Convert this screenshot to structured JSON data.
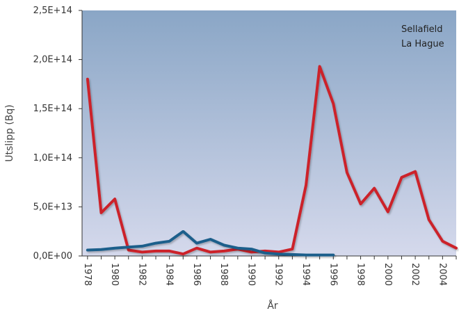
{
  "chart_data": {
    "type": "line",
    "title": "",
    "xlabel": "År",
    "ylabel": "Utslipp (Bq)",
    "ylim": [
      0,
      250000000000000.0
    ],
    "xlim": [
      1978,
      2005
    ],
    "y_ticks": [
      0,
      50000000000000.0,
      100000000000000.0,
      150000000000000.0,
      200000000000000.0,
      250000000000000.0
    ],
    "y_tick_labels": [
      "0,0E+00",
      "5,0E+13",
      "1,0E+14",
      "1,5E+14",
      "2,0E+14",
      "2,5E+14"
    ],
    "x_ticks": [
      1978,
      1980,
      1982,
      1984,
      1986,
      1988,
      1990,
      1992,
      1994,
      1996,
      1998,
      2000,
      2002,
      2004
    ],
    "x_tick_labels": [
      "1978",
      "1980",
      "1982",
      "1984",
      "1986",
      "1988",
      "1990",
      "1992",
      "1994",
      "1996",
      "1998",
      "2000",
      "2002",
      "2004"
    ],
    "legend_position": "top-right",
    "grid": false,
    "background_gradient": [
      "#8aa6c6",
      "#d5d9ec"
    ],
    "series": [
      {
        "name": "Sellafield",
        "color": "#cc2229",
        "x": [
          1978,
          1979,
          1980,
          1981,
          1982,
          1983,
          1984,
          1985,
          1986,
          1987,
          1988,
          1989,
          1990,
          1991,
          1992,
          1993,
          1994,
          1995,
          1996,
          1997,
          1998,
          1999,
          2000,
          2001,
          2002,
          2003,
          2004,
          2005
        ],
        "values": [
          180000000000000.0,
          44000000000000.0,
          58000000000000.0,
          6000000000000.0,
          4000000000000.0,
          5000000000000.0,
          5000000000000.0,
          2000000000000.0,
          8000000000000.0,
          4000000000000.0,
          5000000000000.0,
          7000000000000.0,
          4000000000000.0,
          5000000000000.0,
          4000000000000.0,
          7000000000000.0,
          72000000000000.0,
          193000000000000.0,
          155000000000000.0,
          85000000000000.0,
          53000000000000.0,
          69000000000000.0,
          45000000000000.0,
          80000000000000.0,
          86000000000000.0,
          37000000000000.0,
          15000000000000.0,
          8000000000000.0
        ]
      },
      {
        "name": "La Hague",
        "color": "#1f5f8b",
        "x": [
          1978,
          1979,
          1980,
          1981,
          1982,
          1983,
          1984,
          1985,
          1986,
          1987,
          1988,
          1989,
          1990,
          1991,
          1992,
          1993,
          1994,
          1995,
          1996
        ],
        "values": [
          6000000000000.0,
          6500000000000.0,
          8000000000000.0,
          9000000000000.0,
          10000000000000.0,
          13000000000000.0,
          15000000000000.0,
          25000000000000.0,
          13000000000000.0,
          17000000000000.0,
          11000000000000.0,
          8000000000000.0,
          7000000000000.0,
          3000000000000.0,
          2000000000000.0,
          1500000000000.0,
          1000000000000.0,
          1000000000000.0,
          1000000000000.0
        ]
      }
    ]
  }
}
